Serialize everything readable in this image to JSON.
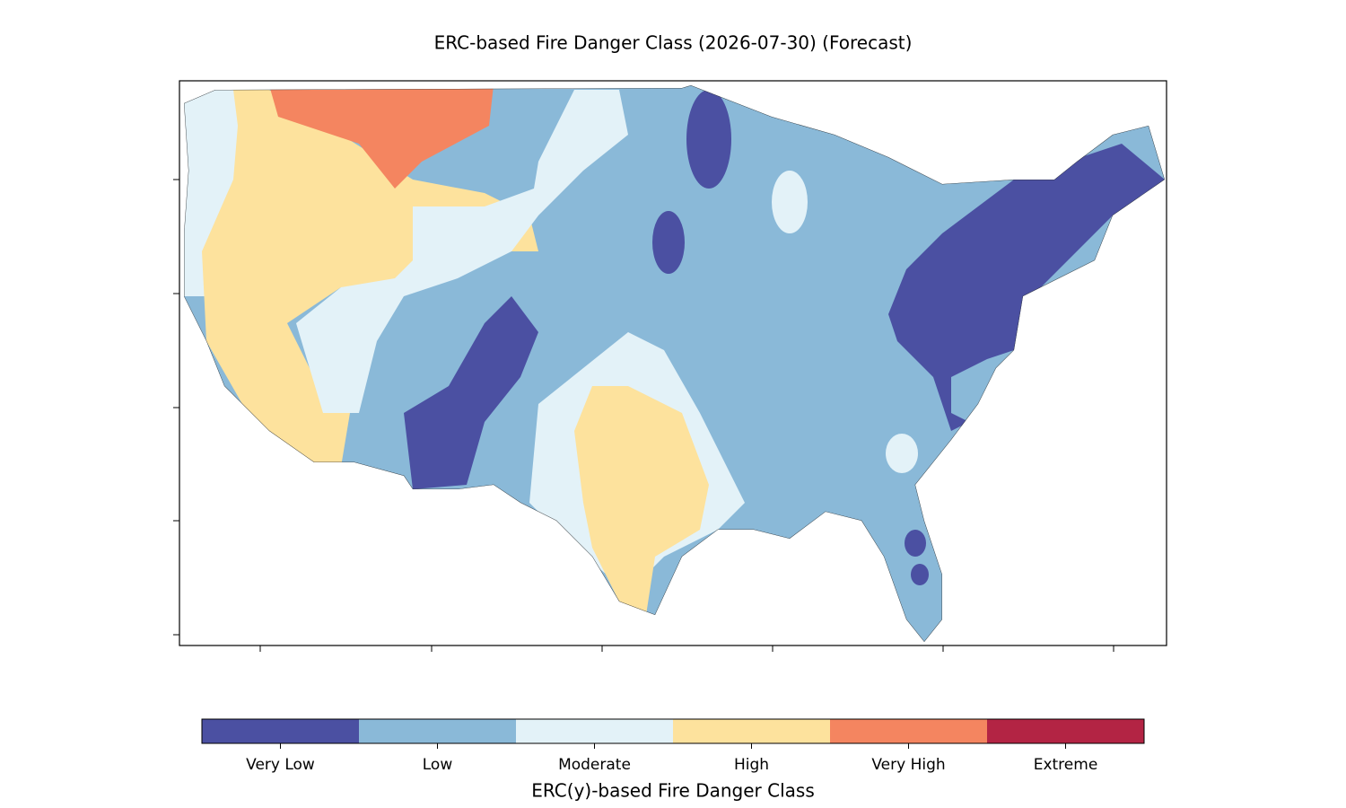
{
  "title": "ERC-based Fire Danger Class (2026-07-30) (Forecast)",
  "colorbar": {
    "label": "ERC(y)-based Fire Danger Class",
    "classes": [
      {
        "name": "Very Low",
        "color": "#4b50a2"
      },
      {
        "name": "Low",
        "color": "#8ab9d8"
      },
      {
        "name": "Moderate",
        "color": "#e3f2f8"
      },
      {
        "name": "High",
        "color": "#fde29d"
      },
      {
        "name": "Very High",
        "color": "#f48560"
      },
      {
        "name": "Extreme",
        "color": "#b32444"
      }
    ]
  }
}
